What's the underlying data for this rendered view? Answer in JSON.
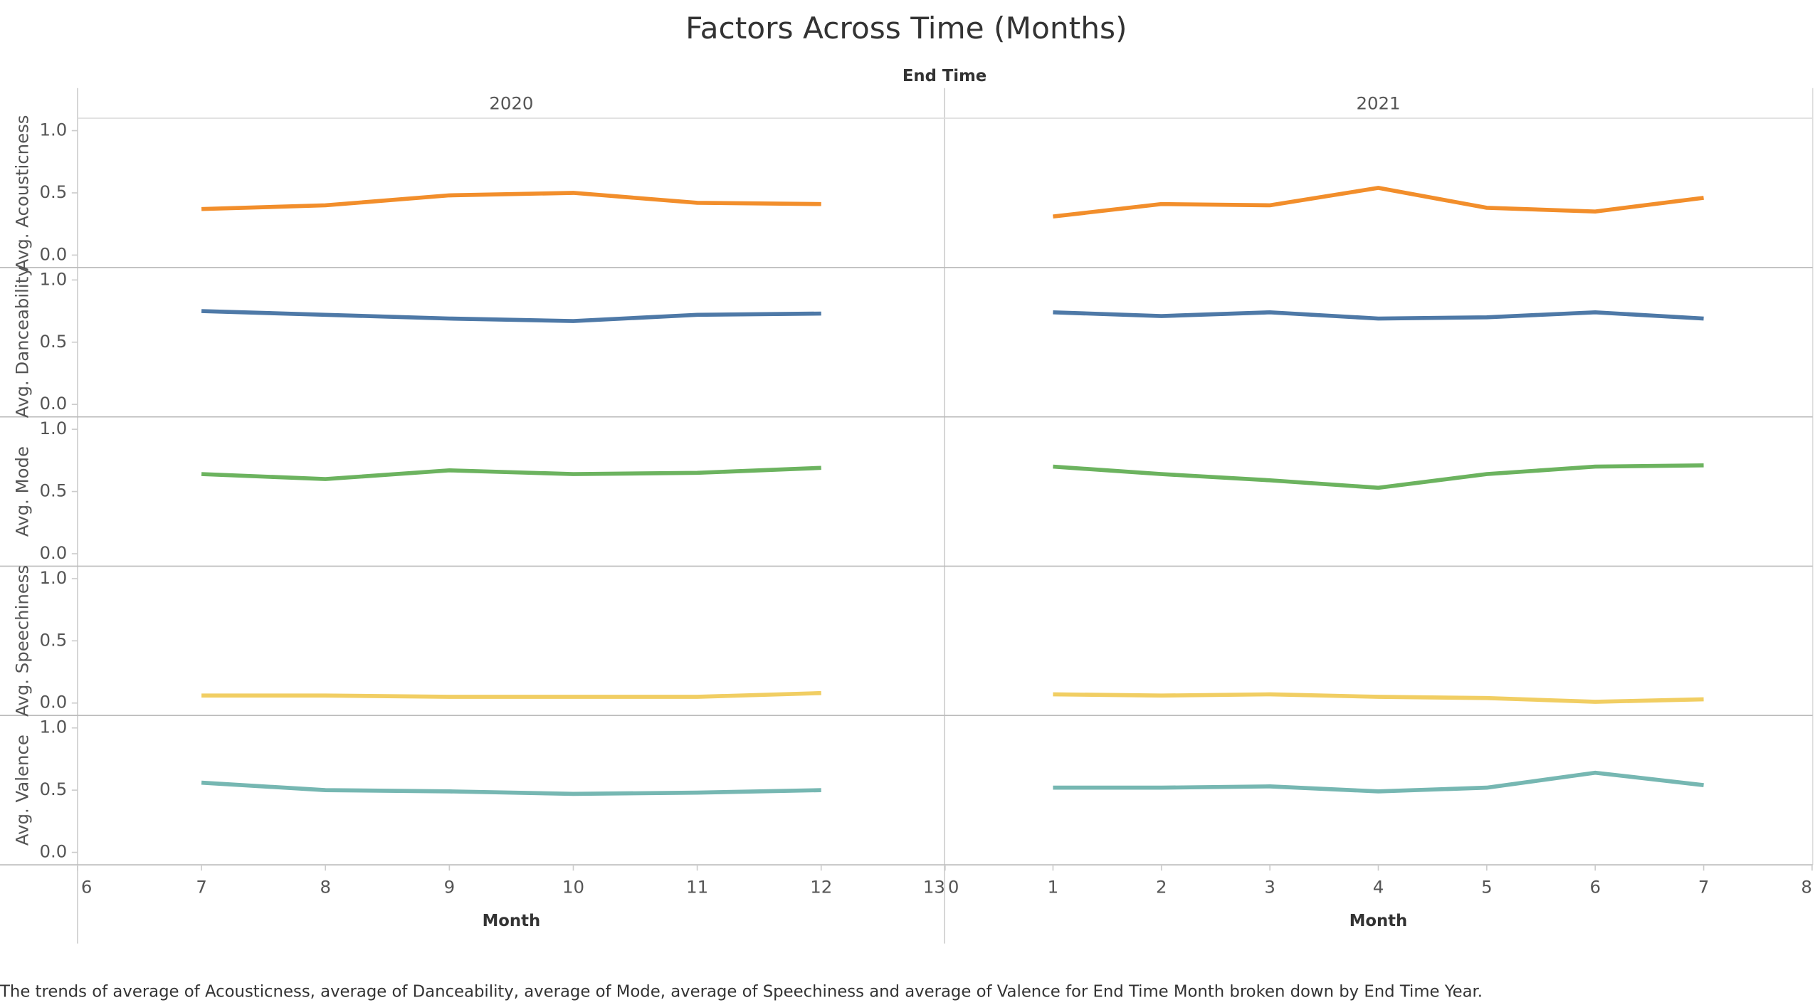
{
  "chart_data": {
    "type": "line",
    "title": "Factors Across Time (Months)",
    "facet_label": "End Time",
    "x_label": "Month",
    "caption": "The trends of average of Acousticness, average of Danceability, average of Mode, average of Speechiness and average of Valence for End Time Month broken down by End Time Year.",
    "panels": [
      {
        "name": "2020",
        "x": [
          7,
          8,
          9,
          10,
          11,
          12
        ],
        "xlim": [
          6,
          13
        ],
        "xticks": [
          6,
          7,
          8,
          9,
          10,
          11,
          12,
          13
        ]
      },
      {
        "name": "2021",
        "x": [
          1,
          2,
          3,
          4,
          5,
          6,
          7
        ],
        "xlim": [
          0,
          8
        ],
        "xticks": [
          0,
          1,
          2,
          3,
          4,
          5,
          6,
          7,
          8
        ]
      }
    ],
    "ylim": [
      -0.1,
      1.1
    ],
    "yticks": [
      {
        "value": 0,
        "label": "0.0"
      },
      0.5,
      {
        "value": 1,
        "label": "1.0"
      }
    ],
    "series": [
      {
        "name": "Avg. Acousticness",
        "color": "#f28e2b",
        "values": [
          [
            0.37,
            0.4,
            0.48,
            0.5,
            0.42,
            0.41
          ],
          [
            0.31,
            0.41,
            0.4,
            0.54,
            0.38,
            0.35,
            0.46
          ]
        ]
      },
      {
        "name": "Avg. Danceability",
        "color": "#4e79a7",
        "values": [
          [
            0.75,
            0.72,
            0.69,
            0.67,
            0.72,
            0.73
          ],
          [
            0.74,
            0.71,
            0.74,
            0.69,
            0.7,
            0.74,
            0.69
          ]
        ]
      },
      {
        "name": "Avg. Mode",
        "color": "#6cb35f",
        "values": [
          [
            0.64,
            0.6,
            0.67,
            0.64,
            0.65,
            0.69
          ],
          [
            0.7,
            0.64,
            0.59,
            0.53,
            0.64,
            0.7,
            0.71
          ]
        ]
      },
      {
        "name": "Avg. Speechiness",
        "color": "#f1ce63",
        "values": [
          [
            0.06,
            0.06,
            0.05,
            0.05,
            0.05,
            0.08
          ],
          [
            0.07,
            0.06,
            0.07,
            0.05,
            0.04,
            0.01,
            0.03
          ]
        ]
      },
      {
        "name": "Avg. Valence",
        "color": "#76b7b2",
        "values": [
          [
            0.56,
            0.5,
            0.49,
            0.47,
            0.48,
            0.5
          ],
          [
            0.52,
            0.52,
            0.53,
            0.49,
            0.52,
            0.64,
            0.54
          ]
        ]
      }
    ]
  }
}
